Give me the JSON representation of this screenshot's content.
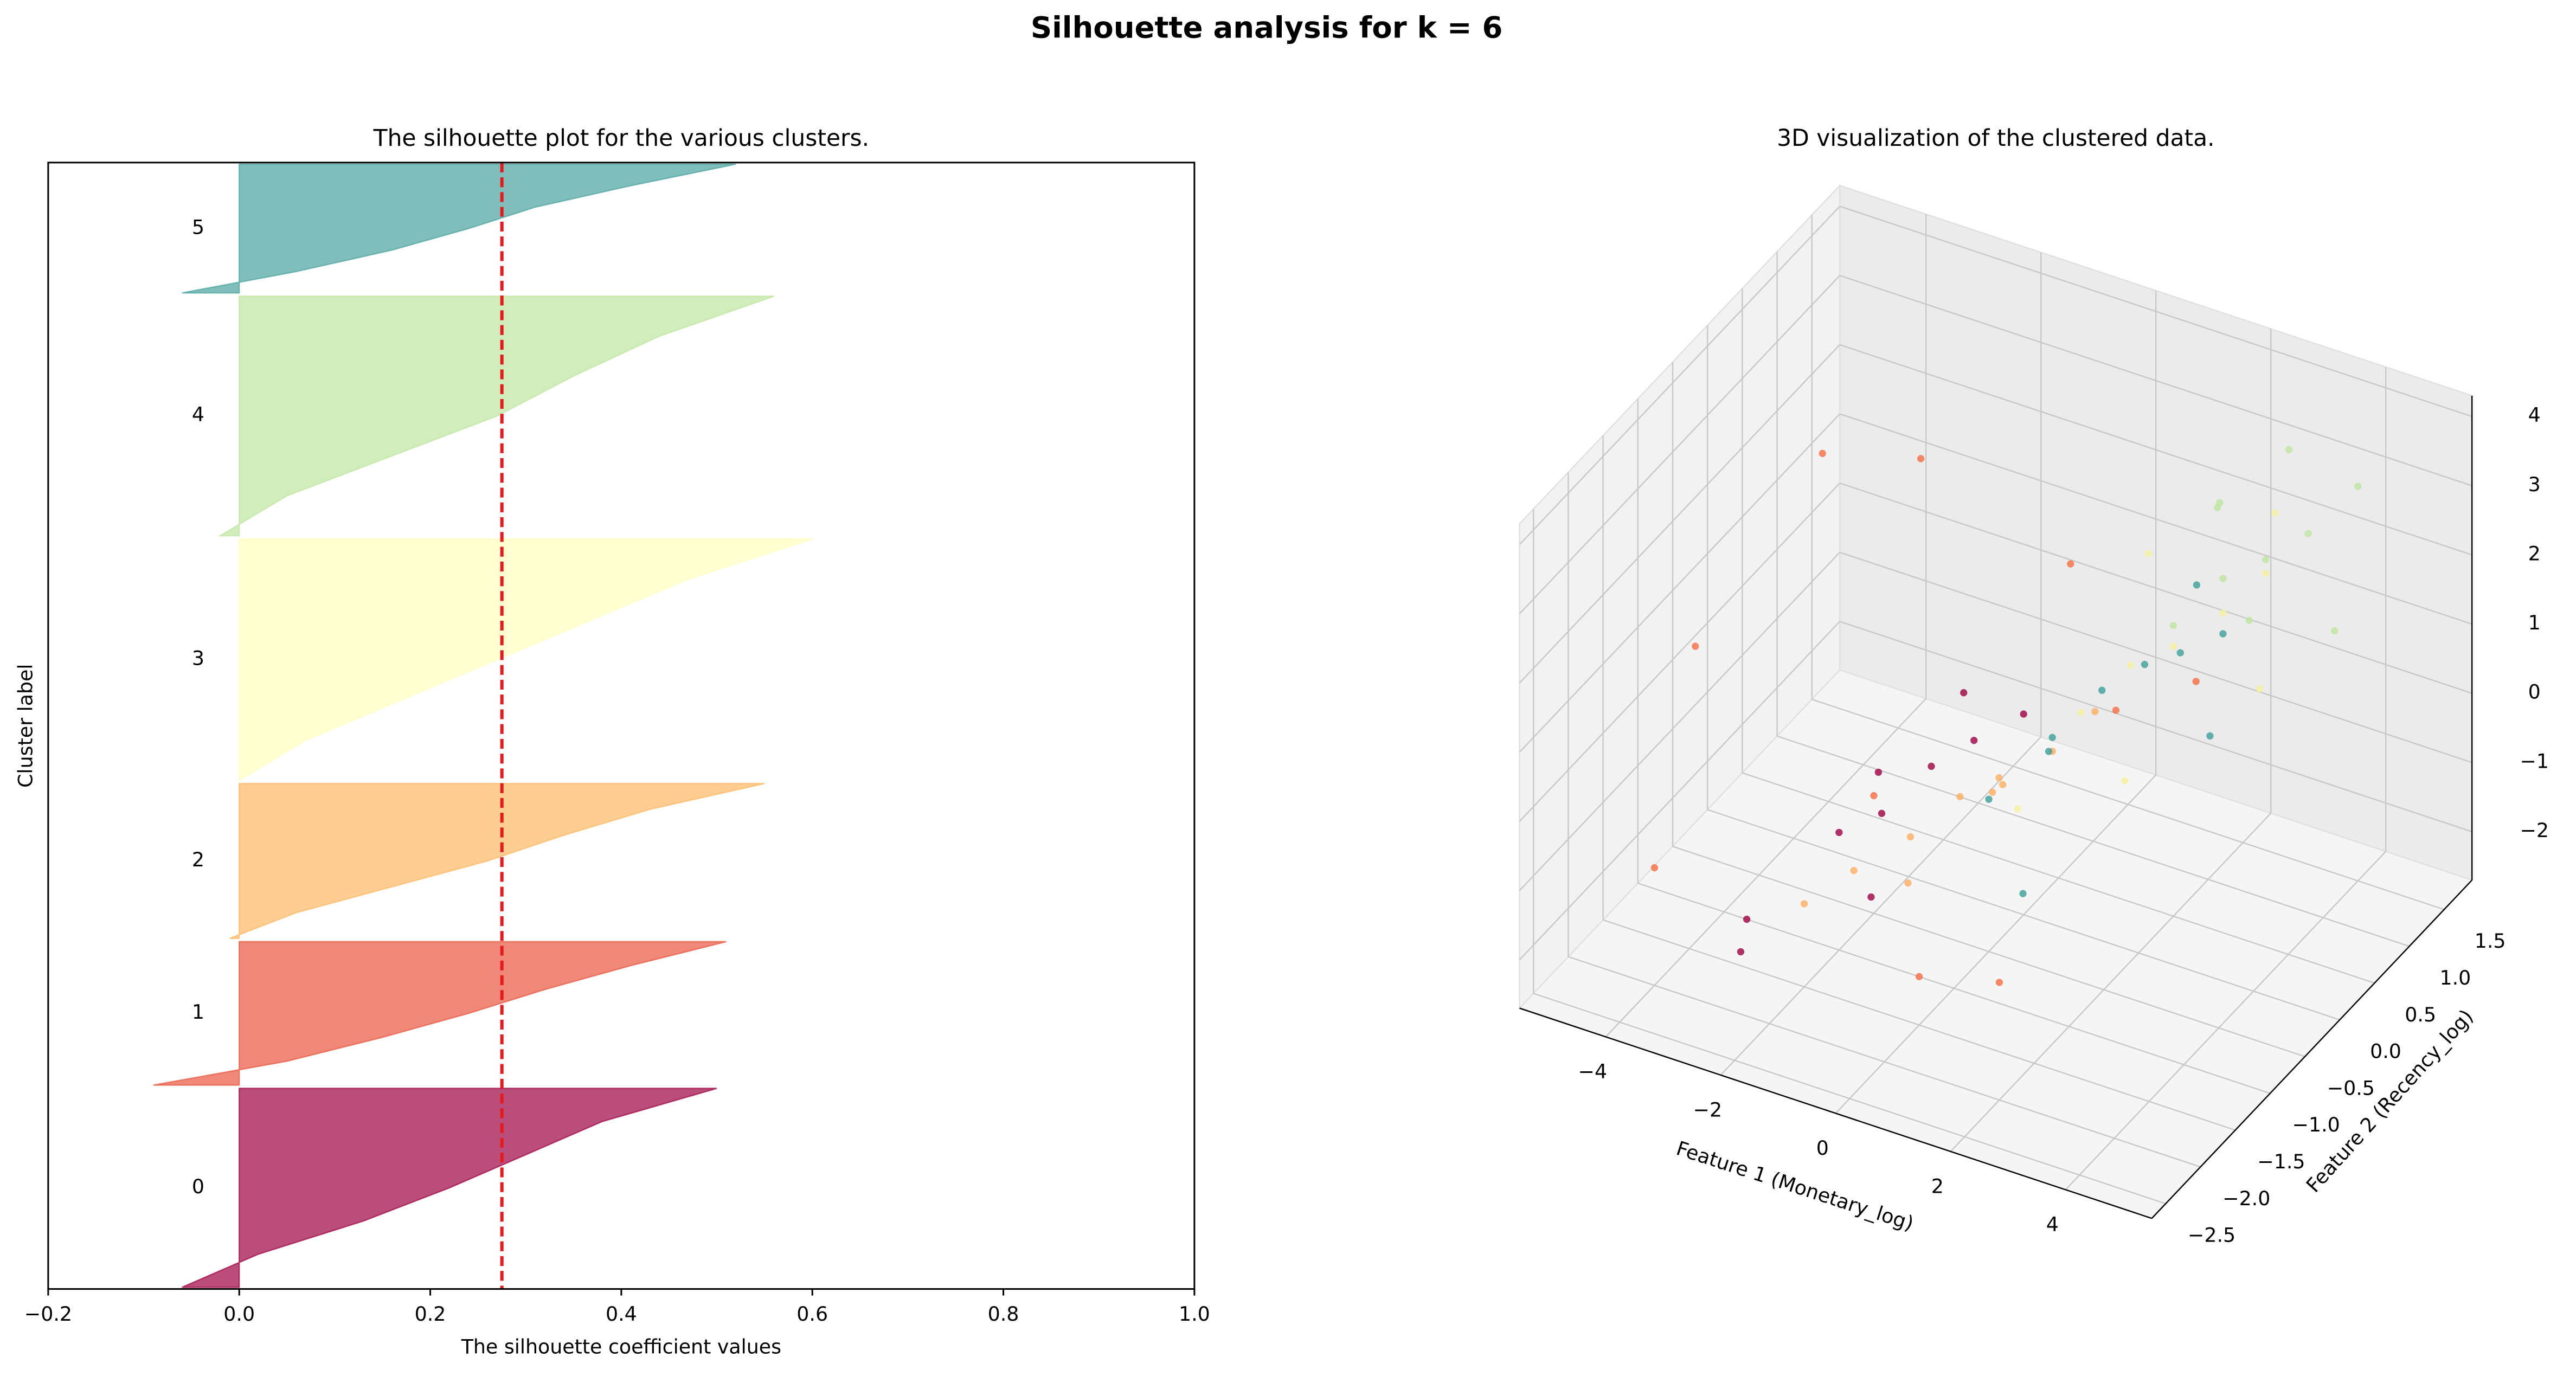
{
  "title": "Silhouette analysis for k = 6",
  "chart_data": [
    {
      "type": "silhouette",
      "title": "The silhouette plot for the various clusters.",
      "xlabel": "The silhouette coefficient values",
      "ylabel": "Cluster label",
      "xlim": [
        -0.2,
        1.0
      ],
      "xticks": [
        {
          "value": -0.2,
          "label": "−0.2"
        },
        {
          "value": 0,
          "label": "0.0"
        },
        0.2,
        0.4,
        0.6,
        0.8,
        {
          "value": 1.0,
          "label": "1.0"
        }
      ],
      "average": 0.275,
      "average_color": "#e41a1c",
      "clusters": [
        {
          "label": "0",
          "color": "#9e0142",
          "size": 785,
          "values": [
            -0.06,
            0.02,
            0.13,
            0.22,
            0.3,
            0.38,
            0.5
          ]
        },
        {
          "label": "1",
          "color": "#e8553f",
          "size": 566,
          "values": [
            -0.09,
            0.05,
            0.15,
            0.24,
            0.32,
            0.41,
            0.51
          ]
        },
        {
          "label": "2",
          "color": "#fdb863",
          "size": 611,
          "values": [
            -0.01,
            0.06,
            0.16,
            0.26,
            0.34,
            0.43,
            0.55
          ]
        },
        {
          "label": "3",
          "color": "#ffffbf",
          "size": 952,
          "values": [
            0.0,
            0.07,
            0.17,
            0.27,
            0.37,
            0.47,
            0.6
          ]
        },
        {
          "label": "4",
          "color": "#bfe5a0",
          "size": 945,
          "values": [
            -0.02,
            0.05,
            0.16,
            0.27,
            0.35,
            0.44,
            0.56
          ]
        },
        {
          "label": "5",
          "color": "#4aa3a0",
          "size": 508,
          "values": [
            -0.06,
            0.06,
            0.16,
            0.24,
            0.31,
            0.41,
            0.52
          ]
        }
      ]
    },
    {
      "type": "scatter3d",
      "title": "3D visualization of the clustered data.",
      "xlabel": "Feature 1 (Monetary_log)",
      "ylabel": "Feature 2 (Recency_log)",
      "xlim": [
        -5.5,
        5.5
      ],
      "ylim": [
        -2.7,
        1.9
      ],
      "zlim": [
        -2.7,
        4.3
      ],
      "xticks": [
        {
          "value": -4,
          "label": "−4"
        },
        {
          "value": -2,
          "label": "−2"
        },
        0,
        2,
        4
      ],
      "yticks": [
        {
          "value": -2.5,
          "label": "−2.5"
        },
        {
          "value": -2.0,
          "label": "−2.0"
        },
        {
          "value": -1.5,
          "label": "−1.5"
        },
        {
          "value": -1.0,
          "label": "−1.0"
        },
        {
          "value": -0.5,
          "label": "−0.5"
        },
        {
          "value": 0,
          "label": "0.0"
        },
        0.5,
        {
          "value": 1.0,
          "label": "1.0"
        },
        1.5
      ],
      "zticks": [
        {
          "value": -2,
          "label": "−2"
        },
        {
          "value": -1,
          "label": "−1"
        },
        0,
        1,
        2,
        3,
        4
      ],
      "series": [
        {
          "name": "0",
          "color": "#9e0142",
          "x": [
            -3,
            -2,
            -1.5,
            -1,
            -0.5,
            -1.2,
            -2.5,
            0,
            -0.8,
            -1.8
          ],
          "y": [
            -1.5,
            -1,
            -0.8,
            -0.5,
            -0.3,
            -1.2,
            -2,
            0,
            -0.2,
            -0.6
          ],
          "z": [
            -2,
            -1,
            -0.8,
            -0.3,
            0,
            -1.5,
            -1.8,
            0.2,
            0.5,
            -0.5
          ]
        },
        {
          "name": "1",
          "color": "#f46d43",
          "x": [
            -4.5,
            -3.5,
            -3,
            -2,
            0,
            1,
            2,
            -1,
            -4,
            3
          ],
          "y": [
            -1,
            0,
            1,
            -0.5,
            -1.5,
            0.5,
            -2,
            1.5,
            -2,
            0
          ],
          "z": [
            1,
            3,
            2,
            -1,
            -2,
            0,
            -1,
            0.5,
            -1,
            1.5
          ]
        },
        {
          "name": "2",
          "color": "#fdae61",
          "x": [
            -1.5,
            -1,
            -0.5,
            0,
            0.5,
            -0.8,
            -2,
            0.3,
            1,
            -0.3
          ],
          "y": [
            -1.2,
            -0.8,
            -0.5,
            -0.3,
            0,
            -1,
            -1.5,
            -0.6,
            0.2,
            -0.2
          ],
          "z": [
            -1.2,
            -1,
            -0.6,
            -0.5,
            -0.2,
            -1.4,
            -1.5,
            0,
            0.3,
            -0.8
          ]
        },
        {
          "name": "3",
          "color": "#f4f0a0",
          "x": [
            1,
            1.5,
            2,
            2.5,
            3,
            0.5,
            2,
            3.5,
            1.2,
            2.8
          ],
          "y": [
            0,
            0.3,
            0.5,
            0.8,
            1,
            -0.5,
            -0.2,
            0.5,
            0.8,
            1.3
          ],
          "z": [
            0.5,
            1,
            1.2,
            1.5,
            2,
            -0.5,
            0,
            1,
            2,
            2.5
          ]
        },
        {
          "name": "4",
          "color": "#bfe5a0",
          "x": [
            2,
            2.5,
            3,
            3.5,
            4,
            2.2,
            3.2,
            4.2,
            1.8,
            2.8
          ],
          "y": [
            0.5,
            0.8,
            1,
            1.2,
            1.5,
            1,
            0.6,
            1,
            1.3,
            1.5
          ],
          "z": [
            1.5,
            2,
            2.2,
            2.5,
            3,
            2.8,
            1.8,
            1.5,
            2.3,
            3.2
          ]
        },
        {
          "name": "5",
          "color": "#3c9f9a",
          "x": [
            0.5,
            1,
            1.5,
            2,
            2.5,
            0,
            1.2,
            3,
            1.8,
            0.8
          ],
          "y": [
            0,
            0.3,
            0.5,
            0.6,
            0.8,
            -0.5,
            -1,
            0.2,
            1,
            -0.3
          ],
          "z": [
            0,
            0.5,
            0.8,
            1,
            1.2,
            -0.5,
            -1,
            0.5,
            1.5,
            0.2
          ]
        }
      ]
    }
  ]
}
